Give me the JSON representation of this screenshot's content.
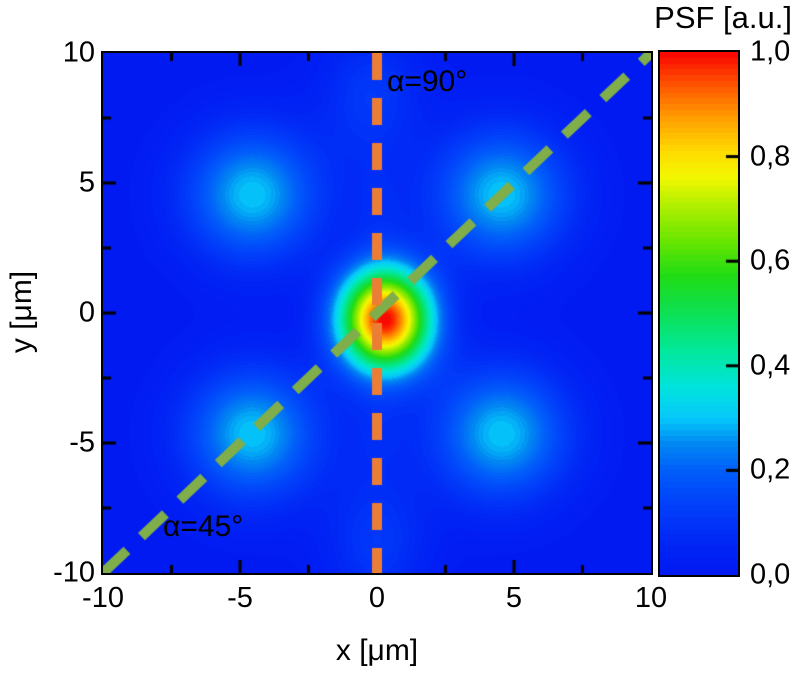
{
  "chart_data": {
    "type": "heatmap",
    "title": "PSF [a.u.]",
    "xlabel": "x [μm]",
    "ylabel": "y [μm]",
    "xlim": [
      -10,
      10
    ],
    "ylim": [
      -10,
      10
    ],
    "zlim": [
      0,
      1
    ],
    "grid": false,
    "xticks": {
      "major": [
        -5,
        0,
        5
      ],
      "minor": [
        -7.5,
        -2.5,
        2.5,
        7.5
      ],
      "label_values": [
        -10,
        -5,
        0,
        5,
        10
      ],
      "labels": [
        "-10",
        "-5",
        "0",
        "5",
        "10"
      ]
    },
    "yticks": {
      "major": [
        -5,
        0,
        5
      ],
      "minor": [
        -7.5,
        -2.5,
        2.5,
        7.5
      ],
      "label_values": [
        10,
        5,
        0,
        -5,
        -10
      ],
      "labels": [
        "10",
        "5",
        "0",
        "-5",
        "-10"
      ]
    },
    "colorbar": {
      "title": "PSF [a.u.]",
      "tick_values": [
        1.0,
        0.8,
        0.6,
        0.4,
        0.2,
        0.0
      ],
      "tick_labels": [
        "1,0",
        "0,8",
        "0,6",
        "0,4",
        "0,2",
        "0,0"
      ],
      "levels": 90,
      "position": "right"
    },
    "colormap": [
      [
        0.0,
        "#0119f2"
      ],
      [
        0.07,
        "#0129f6"
      ],
      [
        0.14,
        "#0142fa"
      ],
      [
        0.2,
        "#015ffa"
      ],
      [
        0.25,
        "#0187f2"
      ],
      [
        0.3,
        "#06c8fa"
      ],
      [
        0.36,
        "#01e4dc"
      ],
      [
        0.43,
        "#02e89a"
      ],
      [
        0.5,
        "#0ce056"
      ],
      [
        0.57,
        "#1fdc16"
      ],
      [
        0.64,
        "#6ae600"
      ],
      [
        0.7,
        "#aaee00"
      ],
      [
        0.76,
        "#f2f800"
      ],
      [
        0.81,
        "#ffda00"
      ],
      [
        0.87,
        "#ffa200"
      ],
      [
        0.93,
        "#ff5c00"
      ],
      [
        1.0,
        "#fa0200"
      ]
    ],
    "psf_lobes": [
      {
        "name": "central-peak",
        "cx": 0.3,
        "cy": -0.25,
        "amp": 1.0,
        "sx": 1.18,
        "sy": 1.38
      },
      {
        "name": "lobe-upper-right",
        "cx": 4.55,
        "cy": 4.55,
        "amp": 0.3,
        "sx": 1.75,
        "sy": 1.8
      },
      {
        "name": "lobe-upper-left",
        "cx": -4.55,
        "cy": 4.55,
        "amp": 0.3,
        "sx": 1.75,
        "sy": 1.8
      },
      {
        "name": "lobe-lower-right",
        "cx": 4.55,
        "cy": -4.65,
        "amp": 0.3,
        "sx": 1.75,
        "sy": 1.8
      },
      {
        "name": "lobe-lower-left",
        "cx": -4.55,
        "cy": -4.65,
        "amp": 0.3,
        "sx": 1.75,
        "sy": 1.8
      },
      {
        "name": "lobe-top-center",
        "cx": -0.2,
        "cy": 8.35,
        "amp": 0.11,
        "sx": 1.3,
        "sy": 1.85
      },
      {
        "name": "lobe-bottom-center",
        "cx": 0.0,
        "cy": -8.8,
        "amp": 0.11,
        "sx": 1.3,
        "sy": 1.85
      },
      {
        "name": "bridge-top",
        "cx": 0.05,
        "cy": 4.1,
        "amp": 0.05,
        "sx": 0.85,
        "sy": 1.3
      },
      {
        "name": "bridge-bottom",
        "cx": 0.05,
        "cy": -4.6,
        "amp": 0.05,
        "sx": 0.85,
        "sy": 1.3
      }
    ],
    "lines": [
      {
        "name": "alpha-90-line",
        "x1": 0,
        "y1": 10,
        "x2": 0,
        "y2": -10,
        "color": "#ec7d35",
        "width": 10,
        "dash": [
          27,
          18
        ]
      },
      {
        "name": "alpha-45-line",
        "x1": -10,
        "y1": -10,
        "x2": 10,
        "y2": 10,
        "color": "#7fae4a",
        "width": 10,
        "dash": [
          33,
          20
        ]
      }
    ],
    "annotations": [
      {
        "name": "alpha-90-label",
        "text": "α=90°",
        "x": 0.35,
        "y": 9.5
      },
      {
        "name": "alpha-45-label",
        "text": "α=45°",
        "x": -7.8,
        "y": -7.6
      }
    ]
  }
}
